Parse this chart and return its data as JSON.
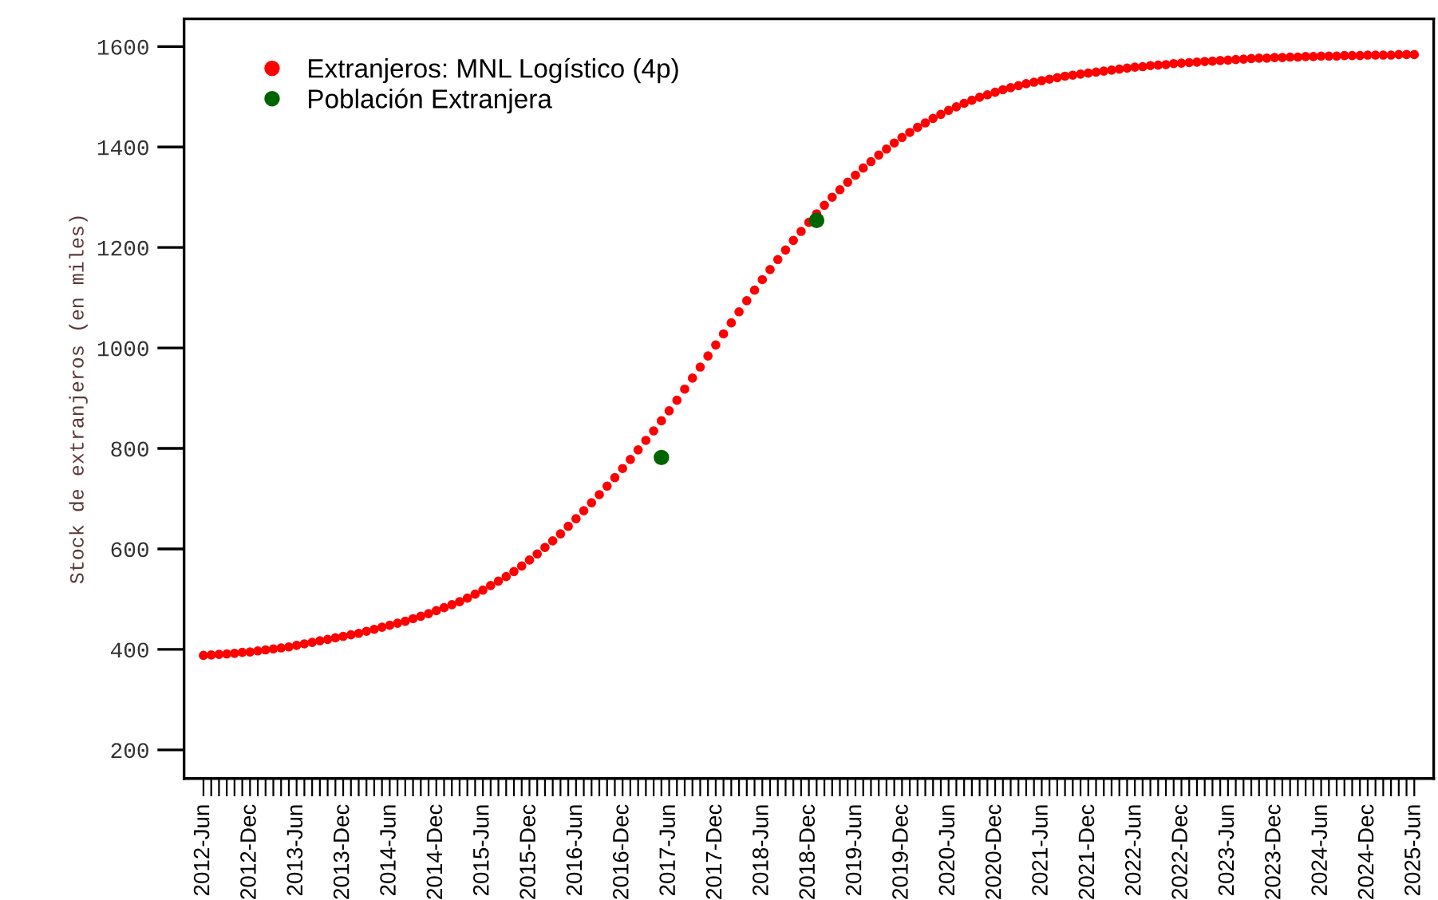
{
  "chart_data": {
    "type": "scatter",
    "ylabel": "Stock de extranjeros (en miles)",
    "categories": [
      "2012-Jun",
      null,
      null,
      null,
      null,
      null,
      "2012-Dec",
      null,
      null,
      null,
      null,
      null,
      "2013-Jun",
      null,
      null,
      null,
      null,
      null,
      "2013-Dec",
      null,
      null,
      null,
      null,
      null,
      "2014-Jun",
      null,
      null,
      null,
      null,
      null,
      "2014-Dec",
      null,
      null,
      null,
      null,
      null,
      "2015-Jun",
      null,
      null,
      null,
      null,
      null,
      "2015-Dec",
      null,
      null,
      null,
      null,
      null,
      "2016-Jun",
      null,
      null,
      null,
      null,
      null,
      "2016-Dec",
      null,
      null,
      null,
      null,
      null,
      "2017-Jun",
      null,
      null,
      null,
      null,
      null,
      "2017-Dec",
      null,
      null,
      null,
      null,
      null,
      "2018-Jun",
      null,
      null,
      null,
      null,
      null,
      "2018-Dec",
      null,
      null,
      null,
      null,
      null,
      "2019-Jun",
      null,
      null,
      null,
      null,
      null,
      "2019-Dec",
      null,
      null,
      null,
      null,
      null,
      "2020-Jun",
      null,
      null,
      null,
      null,
      null,
      "2020-Dec",
      null,
      null,
      null,
      null,
      null,
      "2021-Jun",
      null,
      null,
      null,
      null,
      null,
      "2021-Dec",
      null,
      null,
      null,
      null,
      null,
      "2022-Jun",
      null,
      null,
      null,
      null,
      null,
      "2022-Dec",
      null,
      null,
      null,
      null,
      null,
      "2023-Jun",
      null,
      null,
      null,
      null,
      null,
      "2023-Dec",
      null,
      null,
      null,
      null,
      null,
      "2024-Jun",
      null,
      null,
      null,
      null,
      null,
      "2024-Dec",
      null,
      null,
      null,
      null,
      null,
      "2025-Jun"
    ],
    "series": [
      {
        "name": "Extranjeros: MNL Logístico (4p)",
        "color": "#ff0000",
        "values": [
          388,
          389,
          390,
          391,
          392,
          394,
          395,
          397,
          399,
          401,
          403,
          405,
          408,
          411,
          414,
          417,
          420,
          423,
          426,
          429,
          432,
          436,
          440,
          444,
          448,
          452,
          456,
          461,
          466,
          471,
          477,
          483,
          489,
          495,
          502,
          510,
          518,
          527,
          536,
          545,
          555,
          566,
          578,
          590,
          603,
          616,
          630,
          645,
          660,
          676,
          692,
          708,
          725,
          742,
          760,
          778,
          797,
          816,
          835,
          855,
          875,
          896,
          918,
          940,
          962,
          984,
          1006,
          1028,
          1050,
          1072,
          1094,
          1115,
          1136,
          1156,
          1176,
          1195,
          1214,
          1232,
          1250,
          1267,
          1284,
          1300,
          1315,
          1330,
          1344,
          1358,
          1371,
          1384,
          1396,
          1408,
          1419,
          1429,
          1439,
          1448,
          1457,
          1465,
          1473,
          1480,
          1487,
          1493,
          1499,
          1504,
          1509,
          1514,
          1518,
          1522,
          1526,
          1529,
          1532,
          1535,
          1538,
          1541,
          1543,
          1545,
          1547,
          1549,
          1551,
          1553,
          1555,
          1557,
          1559,
          1560,
          1562,
          1563,
          1564,
          1566,
          1567,
          1568,
          1569,
          1570,
          1571,
          1572,
          1573,
          1574,
          1575,
          1576,
          1577,
          1577,
          1578,
          1578,
          1579,
          1579,
          1580,
          1580,
          1581,
          1581,
          1581,
          1582,
          1582,
          1582,
          1583,
          1583,
          1583,
          1583,
          1584,
          1584,
          1584
        ]
      },
      {
        "name": "Población Extranjera",
        "color": "#006400",
        "values": [
          null,
          null,
          null,
          null,
          null,
          null,
          null,
          null,
          null,
          null,
          null,
          null,
          null,
          null,
          null,
          null,
          null,
          null,
          null,
          null,
          null,
          null,
          null,
          null,
          null,
          null,
          null,
          null,
          null,
          null,
          null,
          null,
          null,
          null,
          null,
          null,
          null,
          null,
          null,
          null,
          null,
          null,
          null,
          null,
          null,
          null,
          null,
          null,
          null,
          null,
          null,
          null,
          null,
          null,
          null,
          null,
          null,
          null,
          null,
          782,
          null,
          null,
          null,
          null,
          null,
          null,
          null,
          null,
          null,
          null,
          null,
          null,
          null,
          null,
          null,
          null,
          null,
          null,
          null,
          1254,
          null,
          null,
          null,
          null,
          null,
          null,
          null,
          null,
          null,
          null,
          null,
          null,
          null,
          null,
          null,
          null,
          null,
          null,
          null,
          null,
          null,
          null,
          null,
          null,
          null,
          null,
          null,
          null,
          null,
          null,
          null,
          null,
          null,
          null,
          null,
          null,
          null,
          null,
          null,
          null,
          null,
          null,
          null,
          null,
          null,
          null,
          null,
          null,
          null,
          null,
          null,
          null,
          null,
          null,
          null,
          null,
          null,
          null,
          null,
          null,
          null,
          null,
          null,
          null,
          null,
          null,
          null,
          null,
          null,
          null,
          null,
          null,
          null,
          null,
          null,
          null,
          null
        ]
      }
    ],
    "ylim": [
      143,
      1655
    ],
    "yticks": [
      200,
      400,
      600,
      800,
      1000,
      1200,
      1400,
      1600
    ],
    "marker": "circle",
    "grid": false,
    "legend": "top left"
  }
}
